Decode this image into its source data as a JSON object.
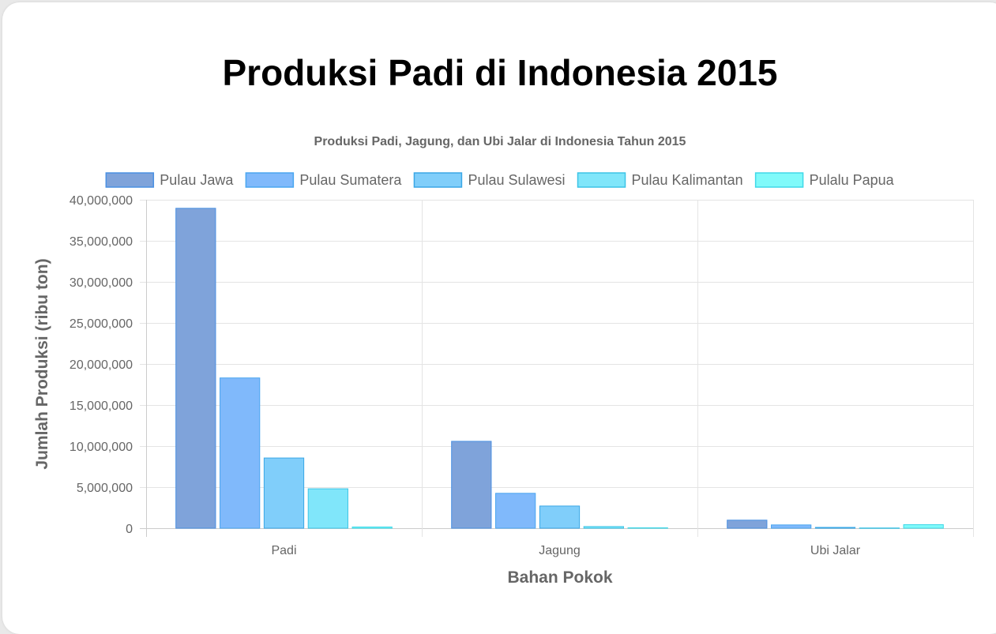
{
  "page": {
    "title": "Produksi Padi di Indonesia 2015"
  },
  "chart_data": {
    "type": "bar",
    "title": "Produksi Padi, Jagung, dan Ubi Jalar di Indonesia Tahun 2015",
    "xlabel": "Bahan Pokok",
    "ylabel": "Jumlah Produksi (ribu ton)",
    "categories": [
      "Padi",
      "Jagung",
      "Ubi Jalar"
    ],
    "ylim": [
      0,
      40000000
    ],
    "yticks": [
      "0",
      "5,000,000",
      "10,000,000",
      "15,000,000",
      "20,000,000",
      "25,000,000",
      "30,000,000",
      "35,000,000",
      "40,000,000"
    ],
    "ytick_values": [
      0,
      5000000,
      10000000,
      15000000,
      20000000,
      25000000,
      30000000,
      35000000,
      40000000
    ],
    "grid": true,
    "legend_position": "top",
    "series": [
      {
        "name": "Pulau Jawa",
        "values": [
          38960000,
          10580000,
          980000
        ],
        "fill": "#7fa3da",
        "stroke": "#4a90e2"
      },
      {
        "name": "Pulau Sumatera",
        "values": [
          18300000,
          4250000,
          400000
        ],
        "fill": "#80b9fb",
        "stroke": "#4aa6f0"
      },
      {
        "name": "Pulau Sulawesi",
        "values": [
          8550000,
          2700000,
          100000
        ],
        "fill": "#80cefa",
        "stroke": "#3aa7e6"
      },
      {
        "name": "Pulau Kalimantan",
        "values": [
          4800000,
          200000,
          30000
        ],
        "fill": "#80e6fa",
        "stroke": "#3cc4e6"
      },
      {
        "name": "Pulalu Papua",
        "values": [
          150000,
          50000,
          430000
        ],
        "fill": "#80fafa",
        "stroke": "#40d8e8"
      }
    ]
  }
}
